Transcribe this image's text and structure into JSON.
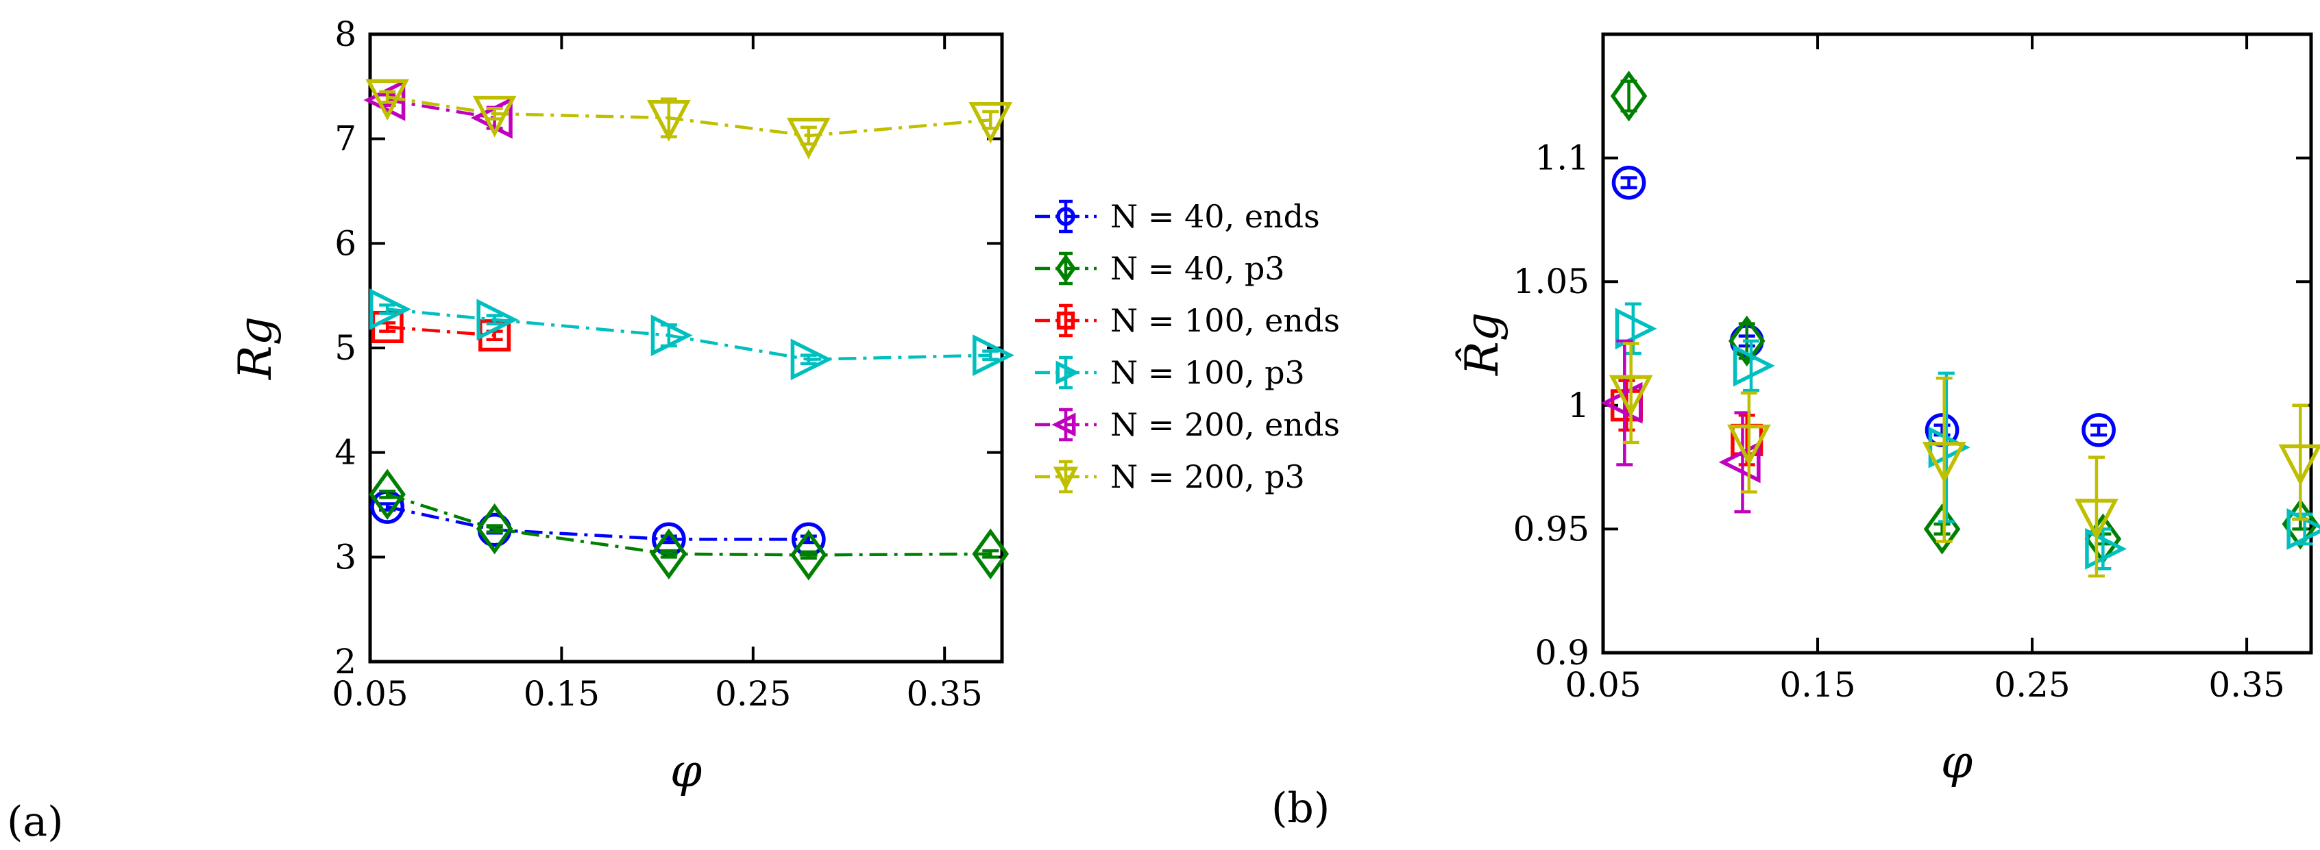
{
  "figure": {
    "panel_labels": [
      "(a)",
      "(b)"
    ]
  },
  "legend": {
    "entries": [
      {
        "label": "N = 40, ends",
        "color": "#0000ff",
        "marker": "circle"
      },
      {
        "label": "N = 40, p3",
        "color": "#008000",
        "marker": "diamond"
      },
      {
        "label": "N = 100, ends",
        "color": "#ff0000",
        "marker": "square"
      },
      {
        "label": "N = 100, p3",
        "color": "#00bfbf",
        "marker": "triangle-right"
      },
      {
        "label": "N = 200, ends",
        "color": "#bf00bf",
        "marker": "triangle-left"
      },
      {
        "label": "N = 200, p3",
        "color": "#bfbf00",
        "marker": "triangle-down"
      }
    ]
  },
  "chart_data": [
    {
      "type": "line",
      "panel": "(a)",
      "xlabel": "φ",
      "ylabel": "Rg",
      "xlim": [
        0.05,
        0.38
      ],
      "ylim": [
        2,
        8
      ],
      "xticks": [
        0.05,
        0.15,
        0.25,
        0.35
      ],
      "xtick_labels": [
        "0.05",
        "0.15",
        "0.25",
        "0.35"
      ],
      "yticks": [
        2,
        3,
        4,
        5,
        6,
        7,
        8
      ],
      "ytick_labels": [
        "2",
        "3",
        "4",
        "5",
        "6",
        "7",
        "8"
      ],
      "series": [
        {
          "name": "N = 40, ends",
          "color": "#0000ff",
          "marker": "circle",
          "x": [
            0.059,
            0.115,
            0.206,
            0.279
          ],
          "y": [
            3.48,
            3.26,
            3.17,
            3.17
          ],
          "err": [
            0.03,
            0.03,
            0.03,
            0.03
          ]
        },
        {
          "name": "N = 40, p3",
          "color": "#008000",
          "marker": "diamond",
          "x": [
            0.059,
            0.115,
            0.206,
            0.279,
            0.374
          ],
          "y": [
            3.6,
            3.27,
            3.03,
            3.02,
            3.03
          ],
          "err": [
            0.03,
            0.03,
            0.03,
            0.03,
            0.03
          ]
        },
        {
          "name": "N = 100, ends",
          "color": "#ff0000",
          "marker": "square",
          "x": [
            0.059,
            0.115
          ],
          "y": [
            5.2,
            5.12
          ],
          "err": [
            0.04,
            0.04
          ]
        },
        {
          "name": "N = 100, p3",
          "color": "#00bfbf",
          "marker": "triangle-right",
          "x": [
            0.059,
            0.115,
            0.206,
            0.279,
            0.374
          ],
          "y": [
            5.37,
            5.27,
            5.12,
            4.89,
            4.93
          ],
          "err": [
            0.04,
            0.04,
            0.1,
            0.04,
            0.04
          ]
        },
        {
          "name": "N = 200, ends",
          "color": "#bf00bf",
          "marker": "triangle-left",
          "x": [
            0.059,
            0.115
          ],
          "y": [
            7.37,
            7.2
          ],
          "err": [
            0.05,
            0.1
          ]
        },
        {
          "name": "N = 200, p3",
          "color": "#bfbf00",
          "marker": "triangle-down",
          "x": [
            0.059,
            0.115,
            0.206,
            0.279,
            0.374
          ],
          "y": [
            7.4,
            7.24,
            7.2,
            7.03,
            7.18
          ],
          "err": [
            0.05,
            0.05,
            0.18,
            0.08,
            0.08
          ]
        }
      ]
    },
    {
      "type": "scatter",
      "panel": "(b)",
      "xlabel": "φ",
      "ylabel": "R̂g",
      "xlim": [
        0.05,
        0.38
      ],
      "ylim": [
        0.9,
        1.15
      ],
      "xticks": [
        0.05,
        0.15,
        0.25,
        0.35
      ],
      "xtick_labels": [
        "0.05",
        "0.15",
        "0.25",
        "0.35"
      ],
      "yticks": [
        0.9,
        0.95,
        1.0,
        1.05,
        1.1
      ],
      "ytick_labels": [
        "0.9",
        "0.95",
        "1",
        "1.05",
        "1.1"
      ],
      "series": [
        {
          "name": "N = 40, ends",
          "color": "#0000ff",
          "marker": "circle",
          "x": [
            0.062,
            0.117,
            0.208,
            0.281
          ],
          "y": [
            1.09,
            1.026,
            0.99,
            0.99
          ],
          "err": [
            0.002,
            0.002,
            0.002,
            0.002
          ]
        },
        {
          "name": "N = 40, p3",
          "color": "#008000",
          "marker": "diamond",
          "x": [
            0.062,
            0.117,
            0.208,
            0.283,
            0.375
          ],
          "y": [
            1.125,
            1.026,
            0.95,
            0.946,
            0.952
          ],
          "err": [
            0.006,
            0.007,
            0.002,
            0.002,
            0.002
          ]
        },
        {
          "name": "N = 100, ends",
          "color": "#ff0000",
          "marker": "square",
          "x": [
            0.061,
            0.117
          ],
          "y": [
            1.0,
            0.986
          ],
          "err": [
            0.01,
            0.01
          ]
        },
        {
          "name": "N = 100, p3",
          "color": "#00bfbf",
          "marker": "triangle-right",
          "x": [
            0.064,
            0.119,
            0.21,
            0.283,
            0.377
          ],
          "y": [
            1.031,
            1.016,
            0.983,
            0.942,
            0.95
          ],
          "err": [
            0.01,
            0.01,
            0.03,
            0.008,
            0.006
          ]
        },
        {
          "name": "N = 200, ends",
          "color": "#bf00bf",
          "marker": "triangle-left",
          "x": [
            0.06,
            0.115
          ],
          "y": [
            1.001,
            0.977
          ],
          "err": [
            0.025,
            0.02
          ]
        },
        {
          "name": "N = 200, p3",
          "color": "#bfbf00",
          "marker": "triangle-down",
          "x": [
            0.063,
            0.118,
            0.209,
            0.28,
            0.375
          ],
          "y": [
            1.005,
            0.985,
            0.978,
            0.955,
            0.977
          ],
          "err": [
            0.02,
            0.02,
            0.033,
            0.024,
            0.023
          ]
        }
      ]
    }
  ]
}
